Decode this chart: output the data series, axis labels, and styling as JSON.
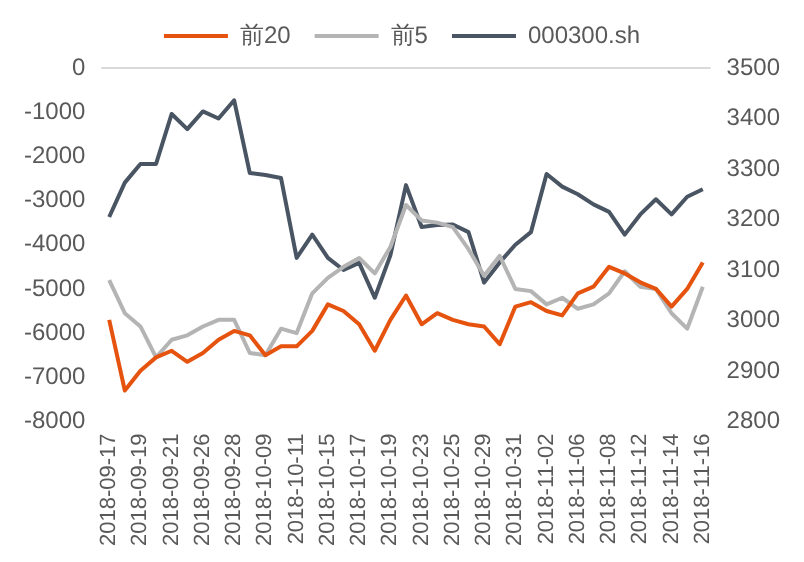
{
  "chart_data": {
    "type": "line",
    "categories": [
      "2018-09-17",
      null,
      "2018-09-19",
      null,
      "2018-09-21",
      null,
      "2018-09-26",
      null,
      "2018-09-28",
      null,
      "2018-10-09",
      null,
      "2018-10-11",
      null,
      "2018-10-15",
      null,
      "2018-10-17",
      null,
      "2018-10-19",
      null,
      "2018-10-23",
      null,
      "2018-10-25",
      null,
      "2018-10-29",
      null,
      "2018-10-31",
      null,
      "2018-11-02",
      null,
      "2018-11-06",
      null,
      "2018-11-08",
      null,
      "2018-11-12",
      null,
      "2018-11-14",
      null,
      "2018-11-16"
    ],
    "series": [
      {
        "name": "前20",
        "color": "#e5530f",
        "values": [
          -5700,
          -7300,
          -6850,
          -6550,
          -6400,
          -6650,
          -6450,
          -6150,
          -5950,
          -6050,
          -6500,
          -6300,
          -6300,
          -5950,
          -5350,
          -5500,
          -5800,
          -6400,
          -5700,
          -5150,
          -5800,
          -5550,
          -5700,
          -5800,
          -5850,
          -6250,
          -5400,
          -5300,
          -5500,
          -5600,
          -5100,
          -4950,
          -4500,
          -4650,
          -4850,
          -5000,
          -5400,
          -5000,
          -4400
        ]
      },
      {
        "name": "前5",
        "color": "#b4b4b4",
        "values": [
          -4800,
          -5550,
          -5850,
          -6550,
          -6150,
          -6050,
          -5850,
          -5700,
          -5700,
          -6450,
          -6500,
          -5900,
          -6000,
          -5100,
          -4750,
          -4500,
          -4300,
          -4650,
          -4050,
          -3100,
          -3450,
          -3500,
          -3600,
          -4100,
          -4700,
          -4250,
          -5000,
          -5050,
          -5350,
          -5200,
          -5450,
          -5350,
          -5100,
          -4600,
          -4950,
          -5000,
          -5550,
          -5900,
          -4950
        ]
      },
      {
        "name": "000300.sh",
        "color": "#4a5563",
        "axis": "y2",
        "values": [
          3205,
          3273,
          3310,
          3310,
          3409,
          3379,
          3414,
          3400,
          3436,
          3292,
          3288,
          3282,
          3124,
          3170,
          3124,
          3100,
          3114,
          3045,
          3129,
          3268,
          3185,
          3189,
          3190,
          3175,
          3075,
          3115,
          3150,
          3175,
          3290,
          3265,
          3250,
          3230,
          3215,
          3170,
          3210,
          3240,
          3210,
          3245,
          3260
        ]
      }
    ],
    "ylim": [
      -8000,
      0
    ],
    "yticks": [
      -8000,
      -7000,
      -6000,
      -5000,
      -4000,
      -3000,
      -2000,
      -1000,
      0
    ],
    "y2lim": [
      2800,
      3500
    ],
    "y2ticks": [
      2800,
      2900,
      3000,
      3100,
      3200,
      3300,
      3400,
      3500
    ],
    "ref_lines": [
      {
        "axis": "y",
        "value": 0,
        "color": "#d9d9d9"
      }
    ],
    "grid": false,
    "legend": "top",
    "marker": "none",
    "line_style": "solid"
  }
}
